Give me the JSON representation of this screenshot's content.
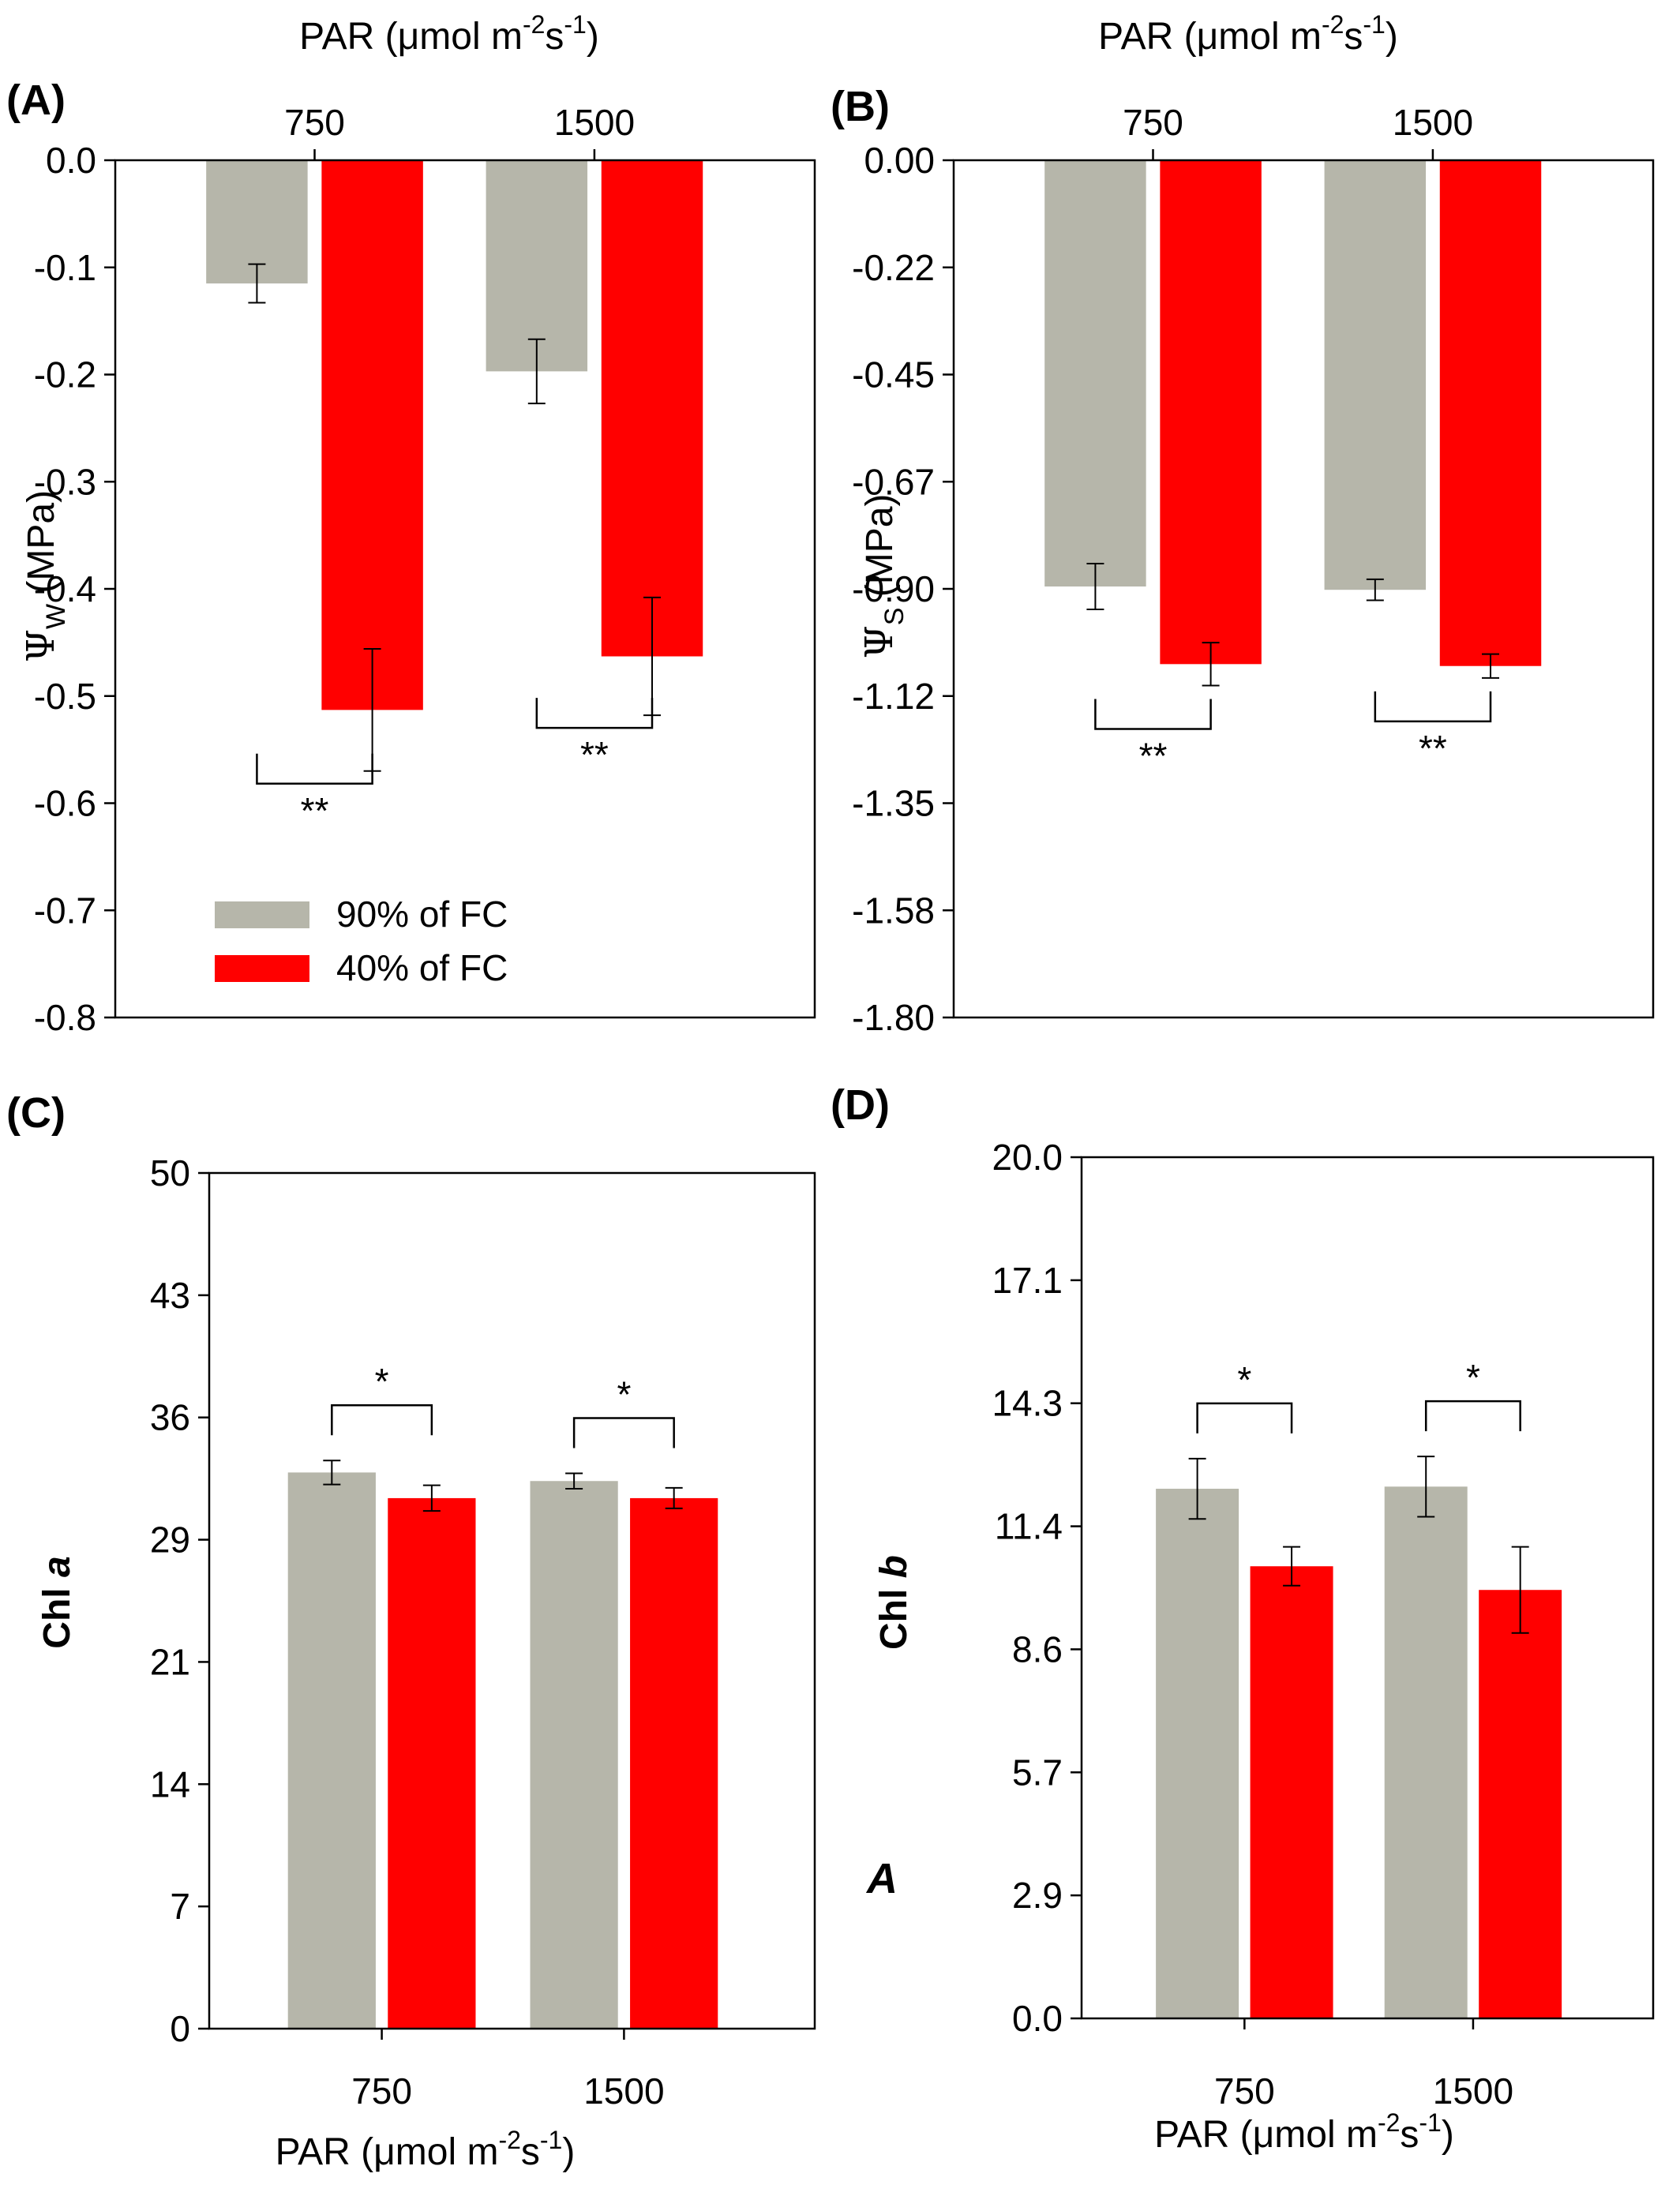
{
  "colors": {
    "well_watered": "#b6b6aa",
    "drought": "#ff0000"
  },
  "legend": [
    {
      "label": "90% of FC",
      "color": "#b6b6aa"
    },
    {
      "label": "40% of FC",
      "color": "#ff0000"
    }
  ],
  "chart_data": [
    {
      "panel_label": "(A)",
      "type": "bar",
      "categories": [
        "750",
        "1500"
      ],
      "xlabel_prefix": "PAR (",
      "xlabel_mu": "μ",
      "xlabel_mid": "mol m",
      "xlabel_sup1": "-2",
      "xlabel_mid2": "s",
      "xlabel_sup2": "-1",
      "xlabel_suffix": ")",
      "xaxis_position": "top",
      "ylabel_symbol": "Ψ",
      "ylabel_sub": "W",
      "ylabel_rest": " (MPa)",
      "ylim": [
        -0.8,
        0
      ],
      "yticks": [
        "0.0",
        "-0.1",
        "-0.2",
        "-0.3",
        "-0.4",
        "-0.5",
        "-0.6",
        "-0.7",
        "-0.8"
      ],
      "series": [
        {
          "name": "90% of FC",
          "values": [
            -0.115,
            -0.197
          ],
          "errors": [
            0.018,
            0.03
          ]
        },
        {
          "name": "40% of FC",
          "values": [
            -0.513,
            -0.463
          ],
          "errors": [
            0.057,
            0.055
          ]
        }
      ],
      "significance": [
        "**",
        "**"
      ],
      "legend_position": "bottom-left"
    },
    {
      "panel_label": "(B)",
      "type": "bar",
      "categories": [
        "750",
        "1500"
      ],
      "xlabel_prefix": "PAR (",
      "xlabel_mu": "μ",
      "xlabel_mid": "mol m",
      "xlabel_sup1": "-2",
      "xlabel_mid2": "s",
      "xlabel_sup2": "-1",
      "xlabel_suffix": ")",
      "xaxis_position": "top",
      "ylabel_symbol": "Ψ",
      "ylabel_sub": "S",
      "ylabel_rest": " (MPa)",
      "ylim": [
        -1.8,
        0
      ],
      "yticks": [
        "0.00",
        "-0.22",
        "-0.45",
        "-0.67",
        "-0.90",
        "-1.12",
        "-1.35",
        "-1.58",
        "-1.80"
      ],
      "series": [
        {
          "name": "90% of FC",
          "values": [
            -0.895,
            -0.902
          ],
          "errors": [
            0.048,
            0.022
          ]
        },
        {
          "name": "40% of FC",
          "values": [
            -1.058,
            -1.062
          ],
          "errors": [
            0.045,
            0.025
          ]
        }
      ],
      "significance": [
        "**",
        "**"
      ]
    },
    {
      "panel_label": "(C)",
      "type": "bar",
      "categories": [
        "750",
        "1500"
      ],
      "xlabel_prefix": "PAR (",
      "xlabel_mu": "μ",
      "xlabel_mid": "mol m",
      "xlabel_sup1": "-2",
      "xlabel_mid2": "s",
      "xlabel_sup2": "-1",
      "xlabel_suffix": ")",
      "xaxis_position": "bottom",
      "ylabel_main": "Chl ",
      "ylabel_italic": "a",
      "ylim": [
        0,
        50
      ],
      "yticks": [
        "0",
        "7",
        "14",
        "21",
        "29",
        "36",
        "43",
        "50"
      ],
      "series": [
        {
          "name": "90% of FC",
          "values": [
            32.5,
            32.0
          ],
          "errors": [
            0.7,
            0.45
          ]
        },
        {
          "name": "40% of FC",
          "values": [
            31.0,
            31.0
          ],
          "errors": [
            0.75,
            0.6
          ]
        }
      ],
      "significance": [
        "*",
        "*"
      ]
    },
    {
      "panel_label": "(D)",
      "type": "bar",
      "categories": [
        "750",
        "1500"
      ],
      "xlabel_prefix": "PAR (",
      "xlabel_mu": "μ",
      "xlabel_mid": "mol m",
      "xlabel_sup1": "-2",
      "xlabel_mid2": "s",
      "xlabel_sup2": "-1",
      "xlabel_suffix": ")",
      "xaxis_position": "bottom",
      "ylabel_main": "Chl ",
      "ylabel_italic": "b",
      "ylim": [
        0,
        20
      ],
      "yticks": [
        "0.0",
        "2.9",
        "5.7",
        "8.6",
        "11.4",
        "14.3",
        "17.1",
        "20.0"
      ],
      "series": [
        {
          "name": "90% of FC",
          "values": [
            12.3,
            12.35
          ],
          "errors": [
            0.7,
            0.7
          ]
        },
        {
          "name": "40% of FC",
          "values": [
            10.5,
            9.95
          ],
          "errors": [
            0.45,
            1.0
          ]
        }
      ],
      "significance": [
        "*",
        "*"
      ],
      "extra_label": "A"
    }
  ]
}
